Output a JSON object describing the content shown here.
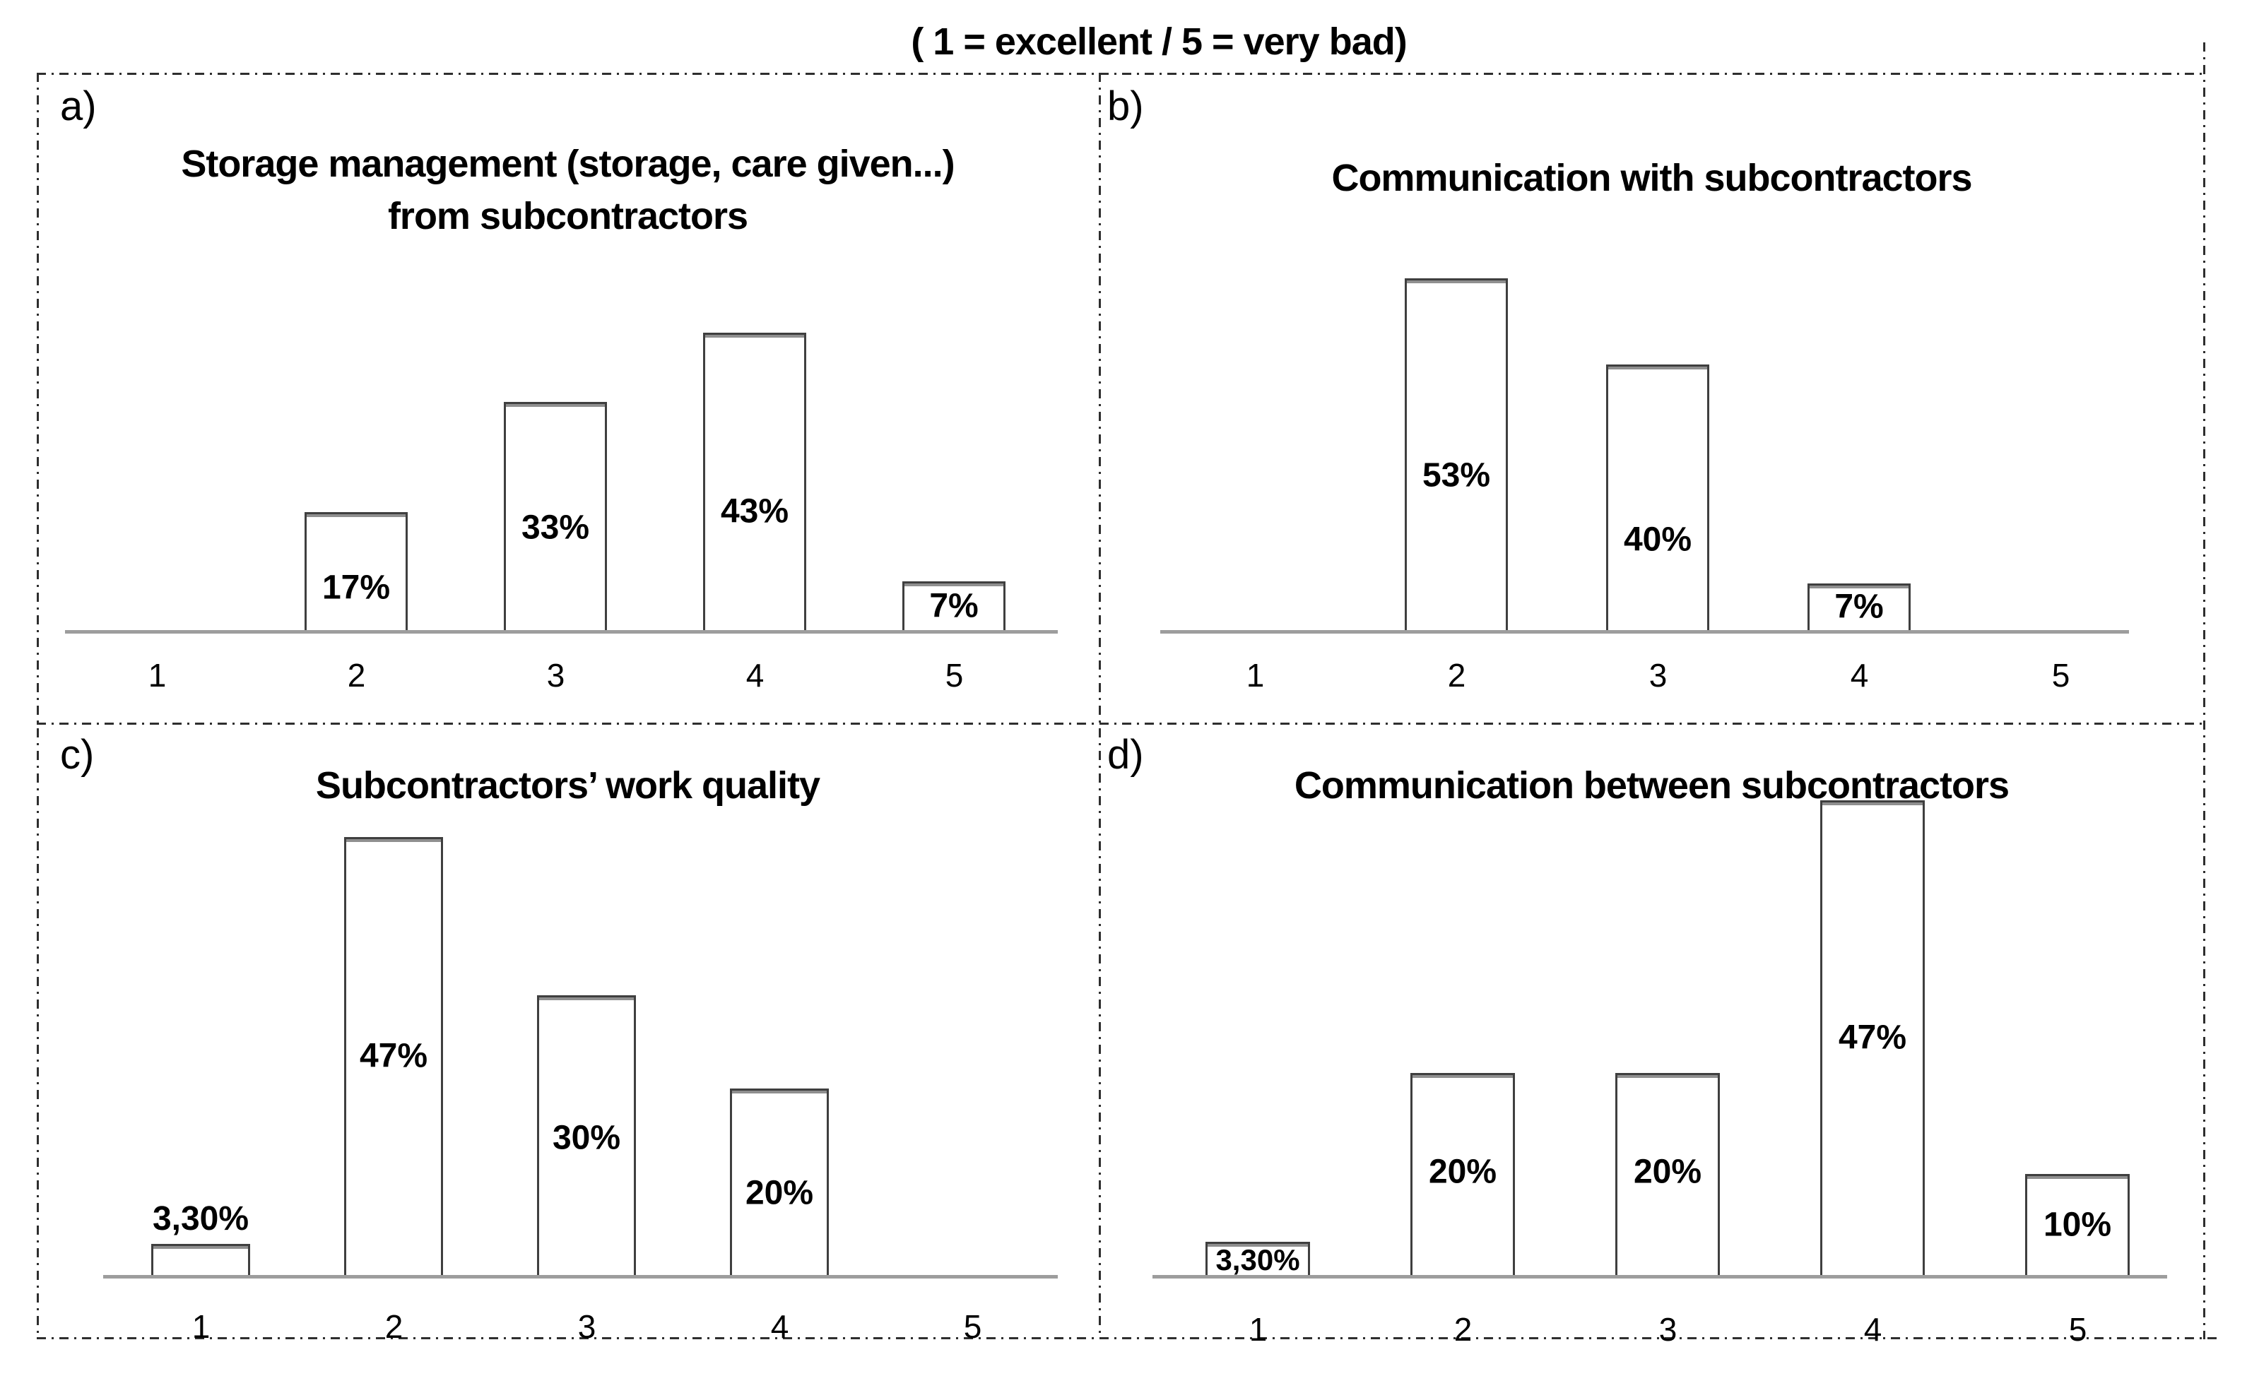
{
  "figure": {
    "top_title": "( 1 = excellent / 5 = very bad)",
    "scale_note": {
      "best": "1 = excellent",
      "worst": "5 = very bad"
    },
    "border_color": "#2e2e2e",
    "bar_fill": "#ffffff",
    "bar_border": "#3f3f3f",
    "axis_color": "#9d9d9d"
  },
  "chart_data": [
    {
      "id": "a",
      "panel_label": "a)",
      "type": "bar",
      "title": "Storage management (storage, care given...) from subcontractors",
      "title_lines": [
        "Storage management (storage, care given...)",
        "from subcontractors"
      ],
      "categories": [
        "1",
        "2",
        "3",
        "4",
        "5"
      ],
      "values": [
        0,
        17,
        33,
        43,
        7
      ],
      "data_labels": [
        "",
        "17%",
        "33%",
        "43%",
        "7%"
      ],
      "label_placement": [
        null,
        0.64,
        0.55,
        0.6,
        0.5
      ],
      "xlabel": "",
      "ylabel": "",
      "ylim": [
        0,
        50
      ],
      "grid": false,
      "legend": "none"
    },
    {
      "id": "b",
      "panel_label": "b)",
      "type": "bar",
      "title": "Communication with subcontractors",
      "title_lines": [
        "Communication with subcontractors"
      ],
      "categories": [
        "1",
        "2",
        "3",
        "4",
        "5"
      ],
      "values": [
        0,
        53,
        40,
        7,
        0
      ],
      "data_labels": [
        "",
        "53%",
        "40%",
        "7%",
        ""
      ],
      "label_placement": [
        null,
        0.56,
        0.66,
        0.5,
        null
      ],
      "xlabel": "",
      "ylabel": "",
      "ylim": [
        0,
        60
      ],
      "grid": false,
      "legend": "none"
    },
    {
      "id": "c",
      "panel_label": "c)",
      "type": "bar",
      "title": "Subcontractors’ work quality",
      "title_lines": [
        "Subcontractors’ work quality"
      ],
      "categories": [
        "1",
        "2",
        "3",
        "4",
        "5"
      ],
      "values": [
        3.3,
        47,
        30,
        20,
        0
      ],
      "data_labels": [
        "3,30%",
        "47%",
        "30%",
        "20%",
        ""
      ],
      "label_placement": [
        "above",
        0.5,
        0.51,
        0.56,
        null
      ],
      "xlabel": "",
      "ylabel": "",
      "ylim": [
        0,
        50
      ],
      "grid": false,
      "legend": "none"
    },
    {
      "id": "d",
      "panel_label": "d)",
      "type": "bar",
      "title": "Communication between subcontractors",
      "title_lines": [
        "Communication between subcontractors"
      ],
      "categories": [
        "1",
        "2",
        "3",
        "4",
        "5"
      ],
      "values": [
        3.3,
        20,
        20,
        47,
        10
      ],
      "data_labels": [
        "3,30%",
        "20%",
        "20%",
        "47%",
        "10%"
      ],
      "label_placement": [
        "fill",
        0.49,
        0.49,
        0.5,
        0.5
      ],
      "xlabel": "",
      "ylabel": "",
      "ylim": [
        0,
        50
      ],
      "grid": false,
      "legend": "none"
    }
  ]
}
